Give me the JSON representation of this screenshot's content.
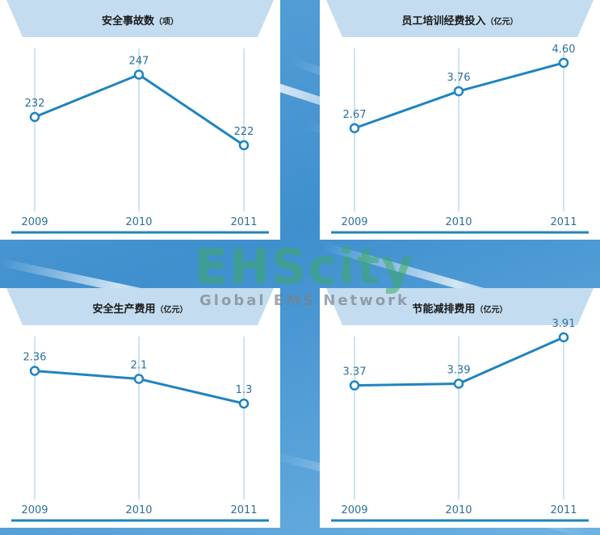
{
  "chart_data": [
    {
      "type": "line",
      "title": "安全事故数",
      "unit": "（项）",
      "categories": [
        "2009",
        "2010",
        "2011"
      ],
      "values": [
        232,
        247,
        222
      ],
      "labels": [
        "232",
        "247",
        "222"
      ],
      "ylim": [
        202,
        262
      ]
    },
    {
      "type": "line",
      "title": "员工培训经费投入",
      "unit": "（亿元）",
      "categories": [
        "2009",
        "2010",
        "2011"
      ],
      "values": [
        2.67,
        3.76,
        4.6
      ],
      "labels": [
        "2.67",
        "3.76",
        "4.60"
      ],
      "ylim": [
        0.5,
        5.5
      ]
    },
    {
      "type": "line",
      "title": "安全生产费用",
      "unit": "（亿元）",
      "categories": [
        "2009",
        "2010",
        "2011"
      ],
      "values": [
        2.36,
        2.1,
        1.3
      ],
      "labels": [
        "2.36",
        "2.1",
        "1.3"
      ],
      "ylim": [
        -1.5,
        4.0
      ]
    },
    {
      "type": "line",
      "title": "节能减排费用",
      "unit": "（亿元）",
      "categories": [
        "2009",
        "2010",
        "2011"
      ],
      "values": [
        3.37,
        3.39,
        3.91
      ],
      "labels": [
        "3.37",
        "3.39",
        "3.91"
      ],
      "ylim": [
        2.2,
        4.1
      ]
    }
  ],
  "watermark": {
    "main": "EHScity",
    "sub": "Global EMS Network"
  },
  "colors": {
    "line": "#1f84c0",
    "title_band": "#c3dcef",
    "axis": "#1f84c0",
    "gridline": "#9ec9e6",
    "text": "#2d6f9e"
  }
}
